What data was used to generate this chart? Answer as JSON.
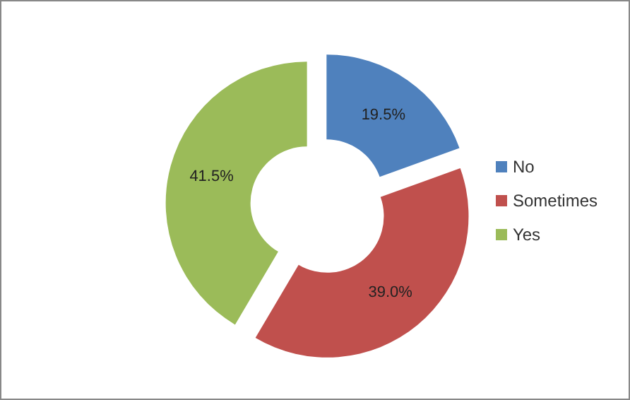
{
  "chart_data": {
    "type": "donut",
    "categories": [
      "No",
      "Sometimes",
      "Yes"
    ],
    "values": [
      19.5,
      39.0,
      41.5
    ],
    "colors": [
      "#4f81bd",
      "#c0504d",
      "#9bbb59"
    ],
    "value_labels": [
      "19.5%",
      "39.0%",
      "41.5%"
    ],
    "legend": "right"
  }
}
